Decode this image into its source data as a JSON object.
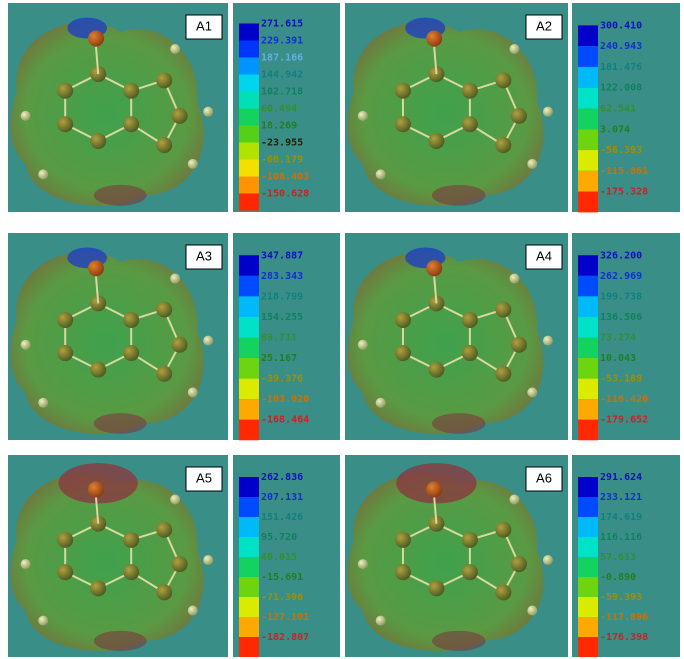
{
  "panels": [
    {
      "label": "A1",
      "scale": [
        "271.615",
        "229.391",
        "187.166",
        "144.942",
        "102.718",
        "60.494",
        "18.269",
        "-23.955",
        "-66.179",
        "-108.403",
        "-150.628"
      ]
    },
    {
      "label": "A2",
      "scale": [
        "300.410",
        "240.943",
        "181.476",
        "122.008",
        "62.541",
        "3.074",
        "-56.393",
        "-115.861",
        "-175.328"
      ]
    },
    {
      "label": "A3",
      "scale": [
        "347.887",
        "283.343",
        "218.799",
        "154.255",
        "89.711",
        "25.167",
        "-39.376",
        "-103.920",
        "-168.464"
      ]
    },
    {
      "label": "A4",
      "scale": [
        "326.200",
        "262.969",
        "199.738",
        "136.506",
        "73.274",
        "10.043",
        "-53.189",
        "-116.420",
        "-179.652"
      ]
    },
    {
      "label": "A5",
      "scale": [
        "262.836",
        "207.131",
        "151.426",
        "95.720",
        "40.015",
        "-15.691",
        "-71.396",
        "-127.101",
        "-182.807"
      ]
    },
    {
      "label": "A6",
      "scale": [
        "291.624",
        "233.121",
        "174.619",
        "116.116",
        "57.613",
        "-0.890",
        "-59.393",
        "-117.896",
        "-176.398"
      ]
    }
  ]
}
